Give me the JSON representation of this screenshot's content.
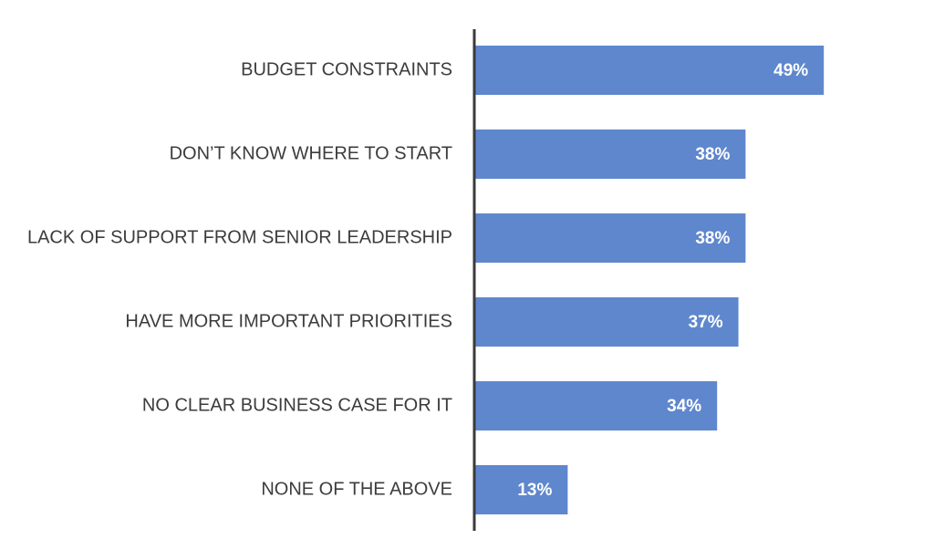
{
  "chart_data": {
    "type": "bar",
    "orientation": "horizontal",
    "categories": [
      "BUDGET CONSTRAINTS",
      "DON’T KNOW WHERE TO START",
      "LACK OF SUPPORT FROM SENIOR LEADERSHIP",
      "HAVE MORE IMPORTANT PRIORITIES",
      "NO CLEAR BUSINESS CASE FOR IT",
      "NONE OF THE ABOVE"
    ],
    "values": [
      49,
      38,
      38,
      37,
      34,
      13
    ],
    "value_labels": [
      "49%",
      "38%",
      "38%",
      "37%",
      "34%",
      "13%"
    ],
    "unit": "%",
    "xlim": [
      0,
      64
    ],
    "grid": false,
    "legend": "none",
    "colors": {
      "bar": "#5f87cd",
      "axis": "#3a3a3a",
      "label_text": "#3c3c3c",
      "value_text": "#ffffff"
    }
  }
}
